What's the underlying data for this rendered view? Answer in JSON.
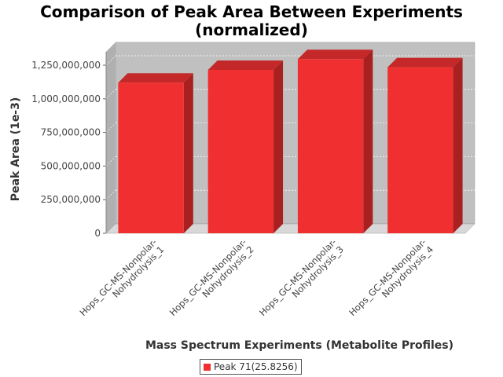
{
  "chart_data": {
    "type": "bar",
    "title": "Comparison of Peak Area Between Experiments",
    "subtitle": "(normalized)",
    "xlabel": "Mass Spectrum Experiments (Metabolite Profiles)",
    "ylabel": "Peak Area (1e-3)",
    "ylim": [
      0,
      1350000000
    ],
    "yticks": [
      0,
      250000000,
      500000000,
      750000000,
      1000000000,
      1250000000
    ],
    "ytick_labels": [
      "0",
      "250,000,000",
      "500,000,000",
      "750,000,000",
      "1,000,000,000",
      "1,250,000,000"
    ],
    "categories": [
      [
        "Hops_GC-MS-Nonpolar-",
        "Nohydrolysis_1"
      ],
      [
        "Hops_GC-MS-Nonpolar-",
        "Nohydrolysis_2"
      ],
      [
        "Hops_GC-MS-Nonpolar-",
        "Nohydrolysis_3"
      ],
      [
        "Hops_GC-MS-Nonpolar-",
        "Nohydrolysis_4"
      ]
    ],
    "series": [
      {
        "name": "Peak 71(25.8256)",
        "values": [
          1120000000,
          1215000000,
          1295000000,
          1235000000
        ]
      }
    ],
    "grid": true,
    "legend": "bottom",
    "colors": {
      "bar_front": "#f03030",
      "bar_side": "#a82020",
      "bar_top": "#c42828",
      "plot_back": "#c0c0c0",
      "plot_floor": "#d8d8d8"
    }
  }
}
